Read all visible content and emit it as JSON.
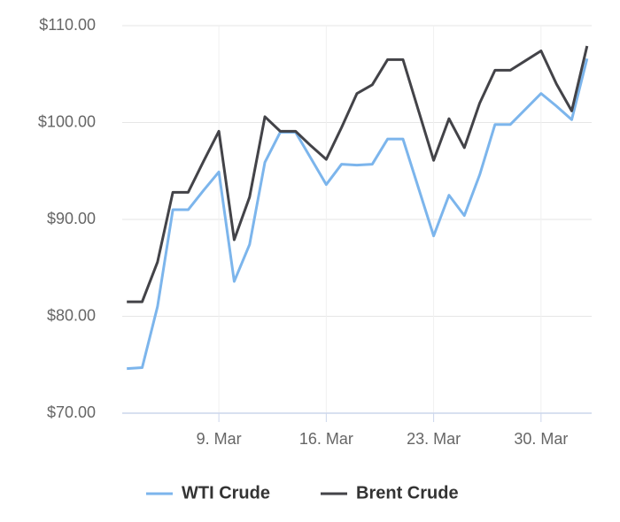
{
  "chart_data": {
    "type": "line",
    "x": [
      3,
      4,
      5,
      6,
      7,
      8,
      9,
      10,
      11,
      12,
      13,
      14,
      15,
      16,
      17,
      18,
      19,
      20,
      21,
      22,
      23,
      24,
      25,
      26,
      27,
      28,
      29,
      30,
      31,
      32,
      33
    ],
    "series": [
      {
        "name": "WTI Crude",
        "color": "#7cb5ec",
        "values": [
          74.6,
          74.7,
          81.0,
          91.0,
          91.0,
          93.0,
          94.9,
          83.6,
          87.4,
          95.9,
          99.0,
          99.0,
          96.3,
          93.6,
          95.7,
          95.6,
          95.7,
          98.3,
          98.3,
          93.3,
          88.3,
          92.5,
          90.4,
          94.6,
          99.8,
          99.8,
          101.4,
          103.0,
          101.7,
          100.3,
          106.6
        ]
      },
      {
        "name": "Brent Crude",
        "color": "#434348",
        "values": [
          81.5,
          81.5,
          85.6,
          92.8,
          92.8,
          96.0,
          99.1,
          87.9,
          92.3,
          100.6,
          99.1,
          99.1,
          97.6,
          96.2,
          99.5,
          103.0,
          103.9,
          106.5,
          106.5,
          101.3,
          96.1,
          100.4,
          97.4,
          102.0,
          105.4,
          105.4,
          106.4,
          107.4,
          104.0,
          101.2,
          107.9
        ]
      }
    ],
    "xlim": [
      2.7,
      33.3
    ],
    "xticks": [
      {
        "value": 9,
        "label": "9. Mar"
      },
      {
        "value": 16,
        "label": "16. Mar"
      },
      {
        "value": 23,
        "label": "23. Mar"
      },
      {
        "value": 30,
        "label": "30. Mar"
      }
    ],
    "ylim": [
      70,
      110
    ],
    "yticks": [
      {
        "value": 70,
        "label": "$70.00"
      },
      {
        "value": 80,
        "label": "$80.00"
      },
      {
        "value": 90,
        "label": "$90.00"
      },
      {
        "value": 100,
        "label": "$100.00"
      },
      {
        "value": 110,
        "label": "$110.00"
      }
    ],
    "grid": true,
    "legend": "bottom"
  }
}
